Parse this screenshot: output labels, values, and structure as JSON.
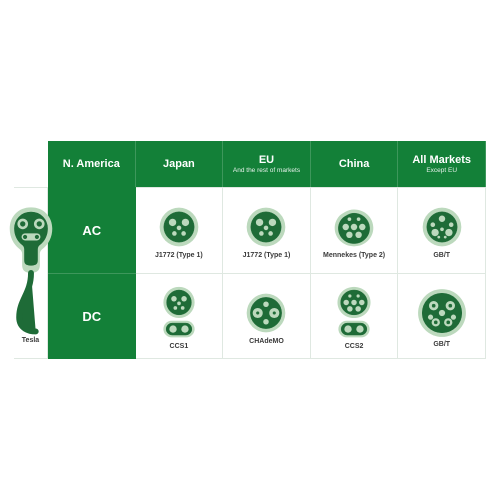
{
  "type": "table",
  "colors": {
    "header_bg": "#138038",
    "header_fg": "#ffffff",
    "grid_line": "#dfe8e1",
    "icon_dark": "#1e6b37",
    "icon_light": "#bcd9bd",
    "icon_mid": "#7fb989",
    "label_color": "#3a3a3a",
    "background": "#ffffff"
  },
  "columns": [
    {
      "title": "N. America",
      "subtitle": ""
    },
    {
      "title": "Japan",
      "subtitle": ""
    },
    {
      "title": "EU",
      "subtitle": "And the rest of markets"
    },
    {
      "title": "China",
      "subtitle": ""
    },
    {
      "title": "All Markets",
      "subtitle": "Except EU"
    }
  ],
  "rows": [
    {
      "label": "AC"
    },
    {
      "label": "DC"
    }
  ],
  "cells": {
    "ac": {
      "namerica": {
        "label": "J1772 (Type 1)",
        "connector": "type1"
      },
      "japan": {
        "label": "J1772 (Type 1)",
        "connector": "type1"
      },
      "eu": {
        "label": "Mennekes (Type 2)",
        "connector": "type2"
      },
      "china": {
        "label": "GB/T",
        "connector": "gbt-ac"
      }
    },
    "dc": {
      "namerica": {
        "label": "CCS1",
        "connector": "ccs1"
      },
      "japan": {
        "label": "CHAdeMO",
        "connector": "chademo"
      },
      "eu": {
        "label": "CCS2",
        "connector": "ccs2"
      },
      "china": {
        "label": "GB/T",
        "connector": "gbt-dc"
      }
    },
    "all": {
      "label": "Tesla",
      "connector": "tesla"
    }
  },
  "icon_size": 46,
  "tesla_icon_height": 130
}
